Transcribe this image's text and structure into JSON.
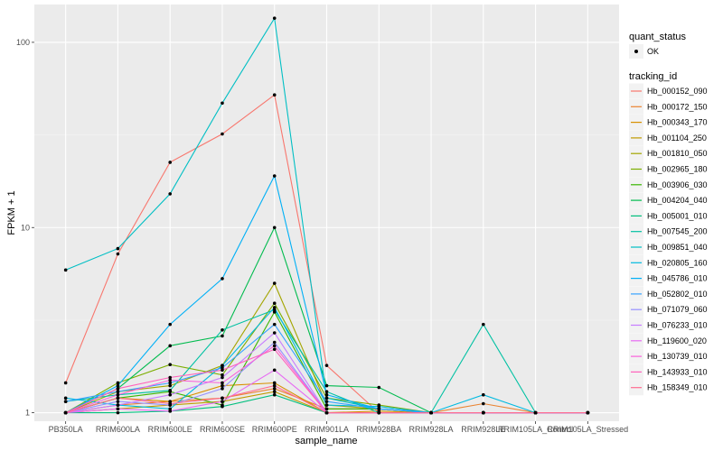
{
  "chart_data": {
    "type": "line",
    "xlabel": "sample_name",
    "ylabel": "FPKM + 1",
    "y_scale": "log10",
    "ylim": [
      0.9,
      160
    ],
    "y_ticks": [
      {
        "value": 1,
        "label": "1"
      },
      {
        "value": 10,
        "label": "10"
      },
      {
        "value": 100,
        "label": "100"
      }
    ],
    "categories": [
      "PB350LA",
      "RRIM600LA",
      "RRIM600LE",
      "RRIM600SE",
      "RRIM600PE",
      "RRIM901LA",
      "RRIM928BA",
      "RRIM928LA",
      "RRIM928LE",
      "RRIM105LA_Control",
      "RRIM105LA_Stressed"
    ],
    "background": "#ebebeb",
    "grid": true,
    "point_color": "#000000",
    "legend_position": "right",
    "legend_shape": {
      "title": "quant_status",
      "items": [
        "OK"
      ]
    },
    "legend_color_title": "tracking_id",
    "series": [
      {
        "name": "Hb_000152_090",
        "color": "#F8766D",
        "values": [
          1.45,
          7.2,
          22.5,
          32,
          52,
          1.8,
          1,
          1,
          1,
          1,
          1
        ]
      },
      {
        "name": "Hb_000172_150",
        "color": "#EA8331",
        "values": [
          1,
          1.1,
          1.15,
          1.2,
          1.35,
          1.05,
          1.05,
          1,
          1.12,
          1,
          1
        ]
      },
      {
        "name": "Hb_000343_170",
        "color": "#D89000",
        "values": [
          1,
          1.2,
          1.15,
          1.4,
          1.45,
          1,
          1.02,
          1,
          1,
          1,
          1
        ]
      },
      {
        "name": "Hb_001104_250",
        "color": "#C09B00",
        "values": [
          1,
          1.05,
          1.1,
          1.15,
          1.3,
          1,
          1,
          1,
          1,
          1,
          1
        ]
      },
      {
        "name": "Hb_001810_050",
        "color": "#A3A500",
        "values": [
          1,
          1.3,
          1.4,
          1.8,
          5,
          1.1,
          1.05,
          1,
          1,
          1,
          1
        ]
      },
      {
        "name": "Hb_002965_180",
        "color": "#7CAE00",
        "values": [
          1,
          1.45,
          1.82,
          1.6,
          3.9,
          1.2,
          1.1,
          1,
          1,
          1,
          1
        ]
      },
      {
        "name": "Hb_003906_030",
        "color": "#39B600",
        "values": [
          1,
          1.2,
          1.3,
          1.1,
          3.5,
          1.05,
          1.05,
          1,
          1,
          1,
          1
        ]
      },
      {
        "name": "Hb_004204_040",
        "color": "#00BB4E",
        "values": [
          1,
          1.35,
          2.3,
          2.6,
          10,
          1.4,
          1.37,
          1,
          1,
          1,
          1
        ]
      },
      {
        "name": "Hb_005001_010",
        "color": "#00BF7D",
        "values": [
          1,
          1,
          1.02,
          1.08,
          1.25,
          1,
          1,
          1,
          1,
          1,
          1
        ]
      },
      {
        "name": "Hb_007545_200",
        "color": "#00C1A3",
        "values": [
          1.15,
          1.25,
          1.32,
          2.8,
          3.6,
          1.3,
          1,
          1,
          3.0,
          1,
          1
        ]
      },
      {
        "name": "Hb_009851_040",
        "color": "#00BFC4",
        "values": [
          5.9,
          7.7,
          15.2,
          47,
          135,
          1.2,
          1.05,
          1,
          1,
          1,
          1
        ]
      },
      {
        "name": "Hb_020805_160",
        "color": "#00BAE0",
        "values": [
          1.2,
          1.1,
          1.05,
          1.8,
          3.7,
          1.1,
          1.08,
          1,
          1.25,
          1,
          1
        ]
      },
      {
        "name": "Hb_045786_010",
        "color": "#00B0F6",
        "values": [
          1,
          1.4,
          3.0,
          5.3,
          19,
          1.25,
          1.05,
          1,
          1,
          1,
          1
        ]
      },
      {
        "name": "Hb_052802_010",
        "color": "#35A2FF",
        "values": [
          1.15,
          1.3,
          1.45,
          1.75,
          3.0,
          1.15,
          1.05,
          1,
          1,
          1,
          1
        ]
      },
      {
        "name": "Hb_071079_060",
        "color": "#9590FF",
        "values": [
          1,
          1.15,
          1.1,
          1.35,
          2.4,
          1,
          1,
          1,
          1,
          1,
          1
        ]
      },
      {
        "name": "Hb_076233_010",
        "color": "#C77CFF",
        "values": [
          1,
          1.1,
          1.25,
          1.55,
          2.7,
          1,
          1,
          1,
          1,
          1,
          1
        ]
      },
      {
        "name": "Hb_119600_020",
        "color": "#E76BF3",
        "values": [
          1,
          1.05,
          1.02,
          1.15,
          1.7,
          1,
          1,
          1,
          1,
          1,
          1
        ]
      },
      {
        "name": "Hb_130739_010",
        "color": "#FA62DB",
        "values": [
          1,
          1.25,
          1.5,
          1.45,
          2.3,
          1,
          1,
          1,
          1,
          1,
          1
        ]
      },
      {
        "name": "Hb_143933_010",
        "color": "#FF62BC",
        "values": [
          1,
          1.35,
          1.55,
          1.7,
          2.2,
          1,
          1,
          1,
          1,
          1,
          1
        ]
      },
      {
        "name": "Hb_158349_010",
        "color": "#FF6C91",
        "values": [
          1,
          1.2,
          1.12,
          1.2,
          1.4,
          1,
          1,
          1,
          1,
          1,
          1
        ]
      }
    ]
  }
}
